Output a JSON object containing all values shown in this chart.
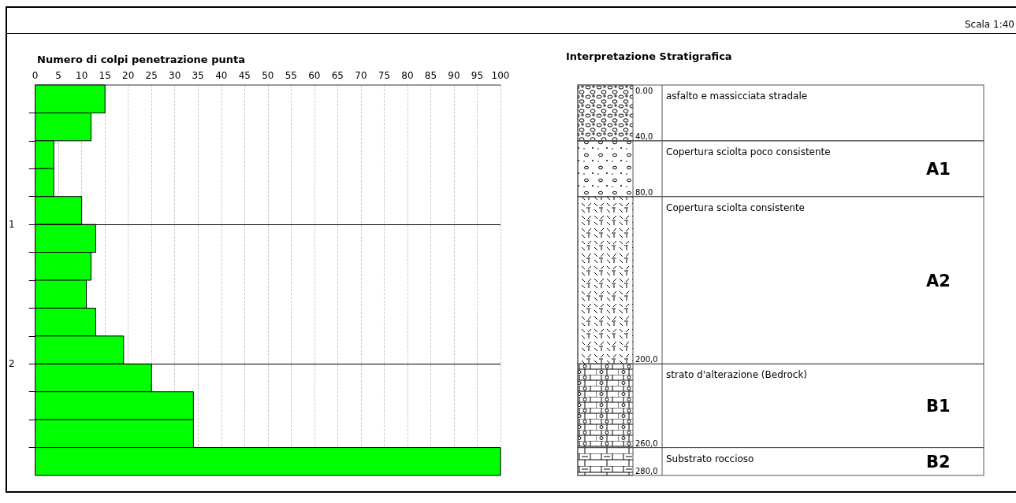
{
  "chart_data": [
    {
      "type": "bar",
      "orientation": "horizontal",
      "title": "Numero di colpi penetrazione punta",
      "x": [
        0.1,
        0.3,
        0.5,
        0.7,
        0.9,
        1.1,
        1.3,
        1.5,
        1.7,
        1.9,
        2.1,
        2.3,
        2.5,
        2.7
      ],
      "values": [
        15,
        12,
        4,
        4,
        10,
        13,
        12,
        11,
        13,
        19,
        25,
        34,
        34,
        100
      ],
      "color": "#00ff00",
      "xlim": [
        0,
        100
      ],
      "xticks": [
        0,
        5,
        10,
        15,
        20,
        25,
        30,
        35,
        40,
        45,
        50,
        55,
        60,
        65,
        70,
        75,
        80,
        85,
        90,
        95,
        100
      ],
      "ylim": [
        2.8,
        0
      ],
      "yticks": [
        {
          "value": 0.2,
          "label": null
        },
        {
          "value": 0.4,
          "label": null
        },
        {
          "value": 0.6,
          "label": null
        },
        {
          "value": 0.8,
          "label": null
        },
        1,
        {
          "value": 1.2,
          "label": null
        },
        {
          "value": 1.4,
          "label": null
        },
        {
          "value": 1.6,
          "label": null
        },
        {
          "value": 1.8,
          "label": null
        },
        2,
        {
          "value": 2.2,
          "label": null
        },
        {
          "value": 2.4,
          "label": null
        },
        {
          "value": 2.6,
          "label": null
        }
      ],
      "grid": "x",
      "ref_lines": [
        {
          "axis": "y",
          "value": 1,
          "label": null
        },
        {
          "axis": "y",
          "value": 2,
          "label": null
        }
      ],
      "annotations": [
        "Scala 1:40"
      ]
    },
    {
      "type": "other",
      "title": "Interpretazione Stratigrafica",
      "categories": [
        "asfalto e massicciata stradale",
        "Copertura sciolta poco consistente",
        "Copertura sciolta consistente",
        "strato d'alterazione (Bedrock)",
        "Substrato roccioso"
      ],
      "y2_categories": [
        null,
        "A1",
        "A2",
        "B1",
        "B2"
      ],
      "annotations": [
        "0.00",
        "40,0",
        "80,0",
        "200,0",
        "260,0",
        "280,0"
      ]
    }
  ]
}
